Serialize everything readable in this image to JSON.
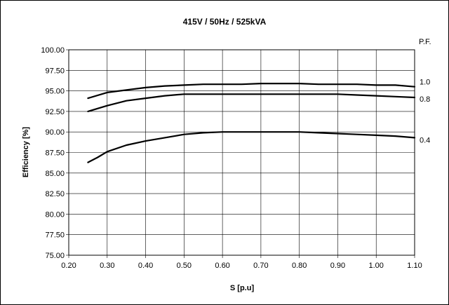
{
  "chart_data": {
    "type": "line",
    "title": "415V / 50Hz / 525kVA",
    "xlabel": "S [p.u]",
    "ylabel": "Efficiency [%]",
    "xlim": [
      0.2,
      1.1
    ],
    "ylim": [
      75.0,
      100.0
    ],
    "x_ticks": [
      "0.20",
      "0.30",
      "0.40",
      "0.50",
      "0.60",
      "0.70",
      "0.80",
      "0.90",
      "1.00",
      "1.10"
    ],
    "y_ticks": [
      "75.00",
      "77.50",
      "80.00",
      "82.50",
      "85.00",
      "87.50",
      "90.00",
      "92.50",
      "95.00",
      "97.50",
      "100.00"
    ],
    "grid": true,
    "legend_title": "P.F.",
    "legend_placement": "right",
    "line_color": "#000000",
    "series": [
      {
        "name": "1.0",
        "x": [
          0.25,
          0.3,
          0.35,
          0.4,
          0.45,
          0.5,
          0.55,
          0.6,
          0.65,
          0.7,
          0.75,
          0.8,
          0.85,
          0.9,
          0.95,
          1.0,
          1.05,
          1.1
        ],
        "y": [
          94.1,
          94.8,
          95.1,
          95.4,
          95.6,
          95.7,
          95.8,
          95.8,
          95.8,
          95.9,
          95.9,
          95.9,
          95.8,
          95.8,
          95.8,
          95.7,
          95.7,
          95.5
        ]
      },
      {
        "name": "0.8",
        "x": [
          0.25,
          0.3,
          0.35,
          0.4,
          0.45,
          0.5,
          0.55,
          0.6,
          0.65,
          0.7,
          0.75,
          0.8,
          0.85,
          0.9,
          0.95,
          1.0,
          1.05,
          1.1
        ],
        "y": [
          92.5,
          93.2,
          93.8,
          94.1,
          94.4,
          94.6,
          94.6,
          94.6,
          94.6,
          94.6,
          94.6,
          94.6,
          94.6,
          94.6,
          94.5,
          94.4,
          94.3,
          94.2
        ]
      },
      {
        "name": "0.4",
        "x": [
          0.25,
          0.275,
          0.3,
          0.35,
          0.4,
          0.45,
          0.5,
          0.55,
          0.6,
          0.65,
          0.7,
          0.75,
          0.8,
          0.85,
          0.9,
          0.95,
          1.0,
          1.05,
          1.1
        ],
        "y": [
          86.3,
          86.9,
          87.6,
          88.4,
          88.9,
          89.3,
          89.7,
          89.9,
          90.0,
          90.0,
          90.0,
          90.0,
          90.0,
          89.9,
          89.8,
          89.7,
          89.6,
          89.5,
          89.3
        ]
      }
    ]
  }
}
